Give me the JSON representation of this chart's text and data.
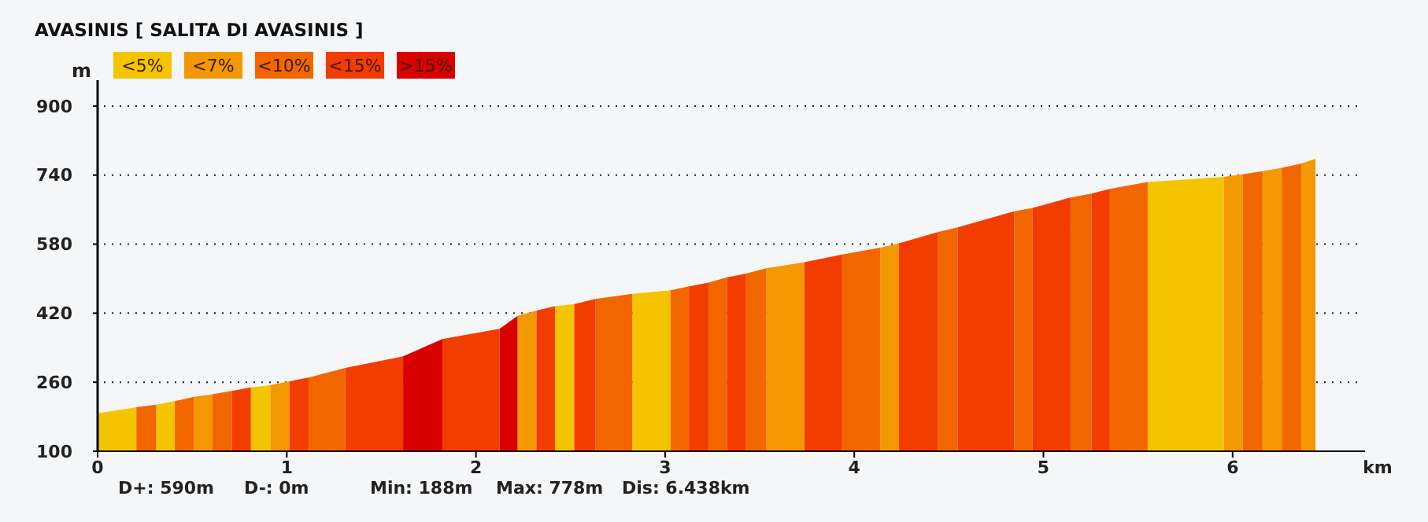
{
  "chart_data": {
    "type": "area",
    "title": "AVASINIS [ SALITA DI AVASINIS ]",
    "xlabel": "km",
    "ylabel": "m",
    "xlim": [
      0,
      6.7
    ],
    "xticks": [
      0,
      1,
      2,
      3,
      4,
      5,
      6
    ],
    "ylim": [
      100,
      960
    ],
    "yticks": [
      100,
      260,
      420,
      580,
      740,
      900
    ],
    "grid": "y",
    "legend": "top left",
    "annotations": [
      "D+: 590m",
      "D-: 0m",
      "Min: 188m",
      "Max: 778m",
      "Dis: 6.438km"
    ],
    "series": [
      {
        "name": "<5%",
        "color": "#f5c400",
        "x": [
          0,
          0.205,
          0.25,
          0.31,
          0.408,
          0.6,
          0.81,
          0.913,
          1.5,
          2.418,
          2.52,
          2.7,
          2.827,
          3.029,
          4,
          5.551,
          5.953
        ],
        "values": [
          188,
          202,
          null,
          208,
          216,
          null,
          248,
          253,
          null,
          436,
          441,
          null,
          465,
          473,
          null,
          724,
          736
        ]
      },
      {
        "name": "<7%",
        "color": "#f39800",
        "x": [
          0.51,
          0.607,
          0.7,
          0.913,
          1.015,
          1.5,
          2.22,
          2.32,
          3,
          3.534,
          3.736,
          3.9,
          4.138,
          4.236,
          5,
          5.953,
          6.053,
          6.1,
          6.158,
          6.26,
          6.3,
          6.363,
          6.438
        ],
        "values": [
          226,
          232,
          null,
          253,
          262,
          null,
          414,
          426,
          null,
          524,
          538,
          null,
          572,
          582,
          null,
          736,
          742,
          null,
          749,
          757,
          null,
          767,
          778
        ]
      },
      {
        "name": "<10%",
        "color": "#f26600",
        "x": [
          0.205,
          0.31,
          0.35,
          0.408,
          0.51,
          0.55,
          0.607,
          0.71,
          0.9,
          1.115,
          1.31,
          2,
          2.632,
          2.827,
          2.9,
          3.029,
          3.126,
          3.2,
          3.229,
          3.328,
          3.4,
          3.428,
          3.534,
          3.8,
          3.936,
          4.138,
          4.3,
          4.441,
          4.546,
          4.7,
          4.846,
          4.943,
          5,
          5.143,
          5.254,
          5.3,
          5.351,
          5.551,
          5.8,
          6.053,
          6.158,
          6.2,
          6.26,
          6.363
        ],
        "values": [
          202,
          208,
          null,
          216,
          226,
          null,
          232,
          240,
          null,
          271,
          293,
          null,
          453,
          465,
          null,
          473,
          482,
          null,
          491,
          503,
          null,
          512,
          524,
          null,
          556,
          572,
          null,
          608,
          619,
          null,
          656,
          664,
          null,
          688,
          697,
          null,
          708,
          724,
          null,
          742,
          749,
          null,
          757,
          767
        ]
      },
      {
        "name": "<15%",
        "color": "#f23c00",
        "x": [
          0.71,
          0.81,
          0.9,
          1.015,
          1.115,
          1.2,
          1.31,
          1.615,
          1.7,
          1.823,
          2.125,
          2.2,
          2.32,
          2.418,
          2.45,
          2.52,
          2.632,
          2.9,
          3.126,
          3.229,
          3.3,
          3.328,
          3.428,
          3.6,
          3.736,
          3.936,
          4.1,
          4.236,
          4.441,
          4.5,
          4.546,
          4.846,
          4.9,
          4.943,
          5.143,
          5.2,
          5.254,
          5.351
        ],
        "values": [
          240,
          248,
          null,
          262,
          271,
          null,
          293,
          320,
          null,
          360,
          384,
          null,
          426,
          436,
          null,
          441,
          453,
          null,
          482,
          491,
          null,
          503,
          512,
          null,
          538,
          556,
          null,
          582,
          608,
          null,
          619,
          656,
          null,
          664,
          688,
          null,
          697,
          708
        ]
      },
      {
        "name": ">15%",
        "color": "#d90000",
        "x": [
          1.615,
          1.823,
          2,
          2.125,
          2.22
        ],
        "values": [
          320,
          360,
          null,
          384,
          414
        ]
      }
    ]
  }
}
